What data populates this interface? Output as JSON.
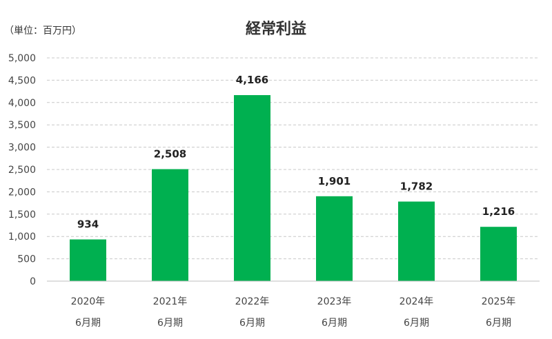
{
  "unit_label": "（単位：百万円）",
  "chart_data": {
    "type": "bar",
    "title": "経常利益",
    "categories": [
      [
        "2020年",
        "6月期"
      ],
      [
        "2021年",
        "6月期"
      ],
      [
        "2022年",
        "6月期"
      ],
      [
        "2023年",
        "6月期"
      ],
      [
        "2024年",
        "6月期"
      ],
      [
        "2025年",
        "6月期"
      ]
    ],
    "values": [
      934,
      2508,
      4166,
      1901,
      1782,
      1216
    ],
    "data_labels": [
      "934",
      "2,508",
      "4,166",
      "1,901",
      "1,782",
      "1,216"
    ],
    "ylim": [
      0,
      5000
    ],
    "yticks": [
      0,
      500,
      1000,
      1500,
      2000,
      2500,
      3000,
      3500,
      4000,
      4500,
      5000
    ],
    "ytick_labels": [
      "0",
      "500",
      "1,000",
      "1,500",
      "2,000",
      "2,500",
      "3,000",
      "3,500",
      "4,000",
      "4,500",
      "5,000"
    ],
    "grid": true,
    "bar_color": "#00b050",
    "grid_color": "#c8c8c8"
  }
}
